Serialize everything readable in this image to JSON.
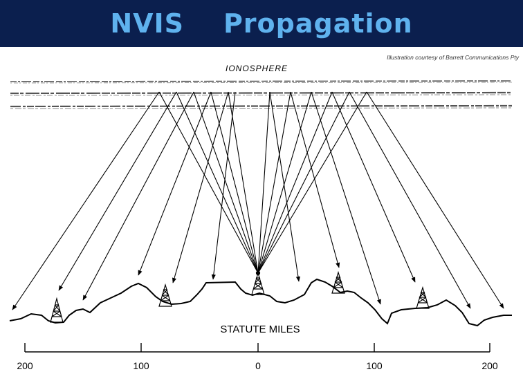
{
  "slide": {
    "title": "NVIS    Propagation",
    "credit": "Illustration courtesy of Barrett Communications Pty"
  },
  "diagram": {
    "ionosphere_label": "IONOSPHERE",
    "axis_label": "STATUTE MILES",
    "ticks": [
      "200",
      "100",
      "0",
      "100",
      "200"
    ]
  },
  "colors": {
    "header_bg": "#0b1f4e",
    "title": "#5fb2ee",
    "ink": "#000000"
  }
}
